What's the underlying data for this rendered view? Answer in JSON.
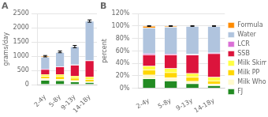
{
  "chart_data": [
    {
      "type": "bar",
      "title": "A",
      "ylabel": "grams/day",
      "stacked": true,
      "grid": true,
      "categories": [
        "2-4y",
        "5-8y",
        "9-13y",
        "14-18y"
      ],
      "series": [
        {
          "name": "FJ",
          "color": "#228B22",
          "values": [
            155,
            140,
            100,
            80
          ]
        },
        {
          "name": "Milk Whole",
          "color": "#FFFACD",
          "values": [
            60,
            55,
            45,
            35
          ]
        },
        {
          "name": "Milk PP",
          "color": "#FFD700",
          "values": [
            80,
            95,
            85,
            75
          ]
        },
        {
          "name": "Milk Skim",
          "color": "#FFFF44",
          "values": [
            65,
            75,
            80,
            90
          ]
        },
        {
          "name": "SSB",
          "color": "#DC143C",
          "values": [
            180,
            260,
            380,
            560
          ]
        },
        {
          "name": "LCR",
          "color": "#DA70D6",
          "values": [
            20,
            18,
            15,
            12
          ]
        },
        {
          "name": "Water",
          "color": "#B0C4DE",
          "values": [
            410,
            490,
            630,
            1380
          ]
        },
        {
          "name": "Formula",
          "color": "#FF8C00",
          "values": [
            30,
            20,
            5,
            5
          ]
        }
      ],
      "error_bars": [
        25,
        30,
        40,
        40
      ],
      "ylim": [
        0,
        2500
      ],
      "yticks": [
        0,
        500,
        1000,
        1500,
        2000,
        2500
      ]
    },
    {
      "type": "bar",
      "title": "B",
      "ylabel": "percent",
      "stacked": true,
      "grid": true,
      "legend": "right",
      "categories": [
        "2-4y",
        "5-8y",
        "9-13y",
        "14-18y"
      ],
      "series": [
        {
          "name": "FJ",
          "color": "#228B22",
          "values": [
            15.5,
            12.0,
            7.5,
            4.5
          ]
        },
        {
          "name": "Milk Whole",
          "color": "#FFFACD",
          "values": [
            6.0,
            5.0,
            4.0,
            2.5
          ]
        },
        {
          "name": "Milk PP",
          "color": "#FFD700",
          "values": [
            8.0,
            8.5,
            6.5,
            5.0
          ]
        },
        {
          "name": "Milk Skim",
          "color": "#FFFF44",
          "values": [
            6.5,
            6.5,
            6.0,
            6.0
          ]
        },
        {
          "name": "SSB",
          "color": "#DC143C",
          "values": [
            18.0,
            22.0,
            29.5,
            38.0
          ]
        },
        {
          "name": "LCR",
          "color": "#DA70D6",
          "values": [
            2.0,
            1.5,
            1.5,
            1.0
          ]
        },
        {
          "name": "Water",
          "color": "#B0C4DE",
          "values": [
            41.0,
            43.0,
            44.5,
            42.5
          ]
        },
        {
          "name": "Formula",
          "color": "#FF8C00",
          "values": [
            3.0,
            1.5,
            0.5,
            0.5
          ]
        }
      ],
      "error_bars": [
        0.5,
        0.5,
        0.5,
        0.5
      ],
      "ylim": [
        0,
        120
      ],
      "yticks": [
        {
          "value": 0,
          "label": "0%"
        },
        {
          "value": 20,
          "label": "20%"
        },
        {
          "value": 40,
          "label": "40%"
        },
        {
          "value": 60,
          "label": "60%"
        },
        {
          "value": 80,
          "label": "80%"
        },
        {
          "value": 100,
          "label": "100%"
        },
        {
          "value": 120,
          "label": "120%"
        }
      ]
    }
  ]
}
